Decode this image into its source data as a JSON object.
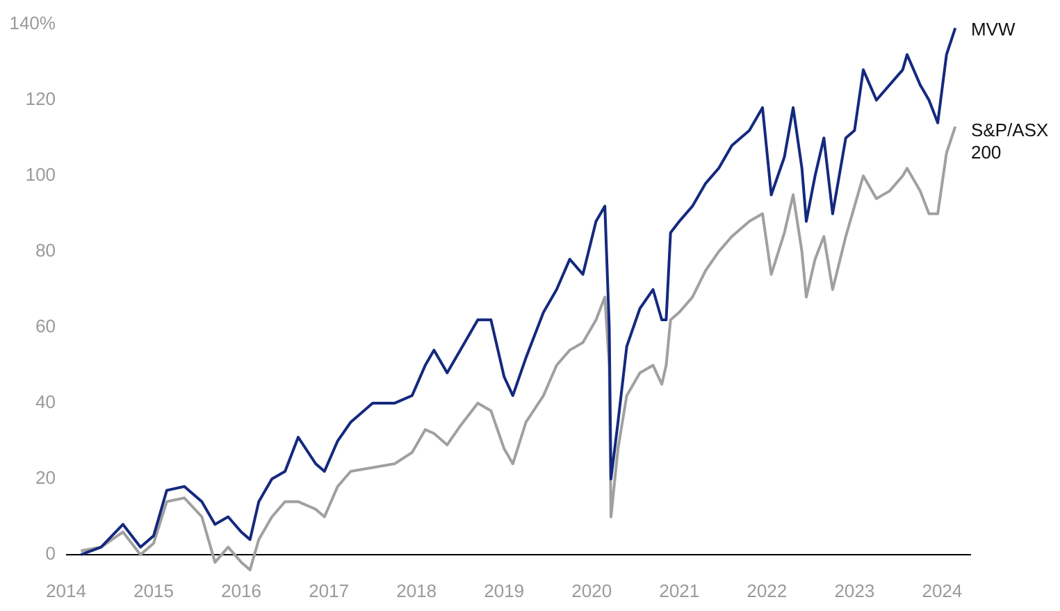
{
  "chart_data": {
    "type": "line",
    "x": [
      2014.17,
      2014.4,
      2014.65,
      2014.85,
      2015.0,
      2015.15,
      2015.35,
      2015.55,
      2015.7,
      2015.85,
      2016.0,
      2016.1,
      2016.2,
      2016.35,
      2016.5,
      2016.65,
      2016.85,
      2016.95,
      2017.1,
      2017.25,
      2017.5,
      2017.75,
      2017.95,
      2018.1,
      2018.2,
      2018.35,
      2018.5,
      2018.7,
      2018.85,
      2019.0,
      2019.1,
      2019.25,
      2019.45,
      2019.6,
      2019.75,
      2019.9,
      2020.05,
      2020.15,
      2020.2,
      2020.22,
      2020.3,
      2020.4,
      2020.55,
      2020.7,
      2020.8,
      2020.85,
      2020.9,
      2021.0,
      2021.15,
      2021.3,
      2021.45,
      2021.6,
      2021.8,
      2021.95,
      2022.05,
      2022.2,
      2022.3,
      2022.4,
      2022.45,
      2022.55,
      2022.65,
      2022.75,
      2022.9,
      2023.0,
      2023.1,
      2023.25,
      2023.4,
      2023.55,
      2023.6,
      2023.75,
      2023.85,
      2023.95,
      2024.05,
      2024.15
    ],
    "series": [
      {
        "name": "S&P/ASX 200",
        "color": "#a0a0a0",
        "values": [
          1,
          2,
          6,
          0,
          3,
          14,
          15,
          10,
          -2,
          2,
          -2,
          -4,
          4,
          10,
          14,
          14,
          12,
          10,
          18,
          22,
          23,
          24,
          27,
          33,
          32,
          29,
          34,
          40,
          38,
          28,
          24,
          35,
          42,
          50,
          54,
          56,
          62,
          68,
          50,
          10,
          28,
          42,
          48,
          50,
          45,
          50,
          62,
          64,
          68,
          75,
          80,
          84,
          88,
          90,
          74,
          85,
          95,
          80,
          68,
          78,
          84,
          70,
          84,
          92,
          100,
          94,
          96,
          100,
          102,
          96,
          90,
          90,
          106,
          113
        ]
      },
      {
        "name": "MVW",
        "color": "#14297e",
        "values": [
          0,
          2,
          8,
          2,
          5,
          17,
          18,
          14,
          8,
          10,
          6,
          4,
          14,
          20,
          22,
          31,
          24,
          22,
          30,
          35,
          40,
          40,
          42,
          50,
          54,
          48,
          54,
          62,
          62,
          47,
          42,
          52,
          64,
          70,
          78,
          74,
          88,
          92,
          60,
          20,
          35,
          55,
          65,
          70,
          62,
          62,
          85,
          88,
          92,
          98,
          102,
          108,
          112,
          118,
          95,
          105,
          118,
          102,
          88,
          100,
          110,
          90,
          110,
          112,
          128,
          120,
          124,
          128,
          132,
          124,
          120,
          114,
          132,
          139
        ]
      }
    ],
    "xlim": [
      2014,
      2024.33
    ],
    "xticks": [
      2014,
      2015,
      2016,
      2017,
      2018,
      2019,
      2020,
      2021,
      2022,
      2023,
      2024
    ],
    "ylim": [
      -5,
      140
    ],
    "yticks": [
      0,
      20,
      40,
      60,
      80,
      100,
      120,
      {
        "value": 140,
        "label": "140%"
      }
    ],
    "grid": false
  }
}
